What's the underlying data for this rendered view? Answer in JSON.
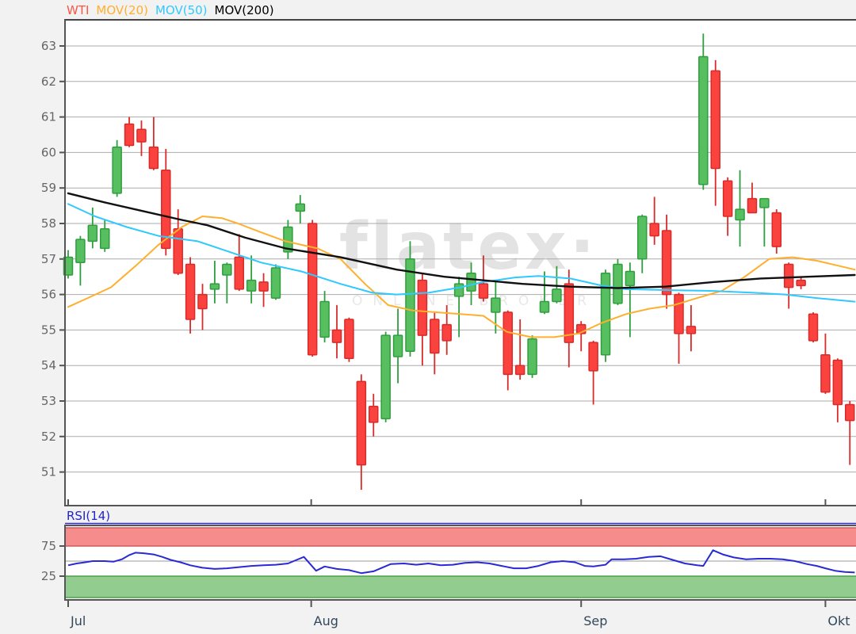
{
  "page": {
    "background": "#f2f2f2"
  },
  "legend": {
    "items": [
      {
        "label": "WTI",
        "color": "#ff5444"
      },
      {
        "label": "MOV(20)",
        "color": "#ffaf2e"
      },
      {
        "label": "MOV(50)",
        "color": "#2fc9ff"
      },
      {
        "label": "MOV(200)",
        "color": "#000000"
      }
    ]
  },
  "watermark": {
    "line1": "flatex·",
    "line2": "ONLINE BROKER",
    "color": "#e3e3e3",
    "color2": "#e8e8e8"
  },
  "rsi_panel": {
    "label": "RSI(14)",
    "label_color": "#2323cf",
    "line_color": "#2a2ad4",
    "upper_band_value": 75,
    "lower_band_value": 25,
    "band_red": "#f68c8c",
    "band_red_edge": "#d05a5a",
    "band_green": "#92cd8f",
    "band_green_edge": "#4ba04b"
  },
  "axes": {
    "y_ticks": [
      63,
      62,
      61,
      60,
      59,
      58,
      57,
      56,
      55,
      54,
      53,
      52,
      51
    ],
    "y_tick_color": "#666666",
    "x_labels": [
      "Jul",
      "Aug",
      "Sep",
      "Okt"
    ],
    "x_label_color": "#33475a",
    "y_range_visible": [
      50.1,
      63.7
    ]
  },
  "chart_data": {
    "type": "candlestick",
    "title": "WTI",
    "subpanel": "RSI(14)",
    "colors": {
      "up": "#57bf5f",
      "up_border": "#2f9e3e",
      "down": "#fa423e",
      "down_border": "#d92b29",
      "ma20": "#ffaf2e",
      "ma50": "#2fc9ff",
      "ma200": "#111111",
      "rsi": "#2a2ad4",
      "grid": "#ababab",
      "border": "#555555"
    },
    "month_ticks": [
      {
        "label": "Jul",
        "i": 0
      },
      {
        "label": "Aug",
        "i": 19.9
      },
      {
        "label": "Sep",
        "i": 42.0
      },
      {
        "label": "Okt",
        "i": 62.0
      }
    ],
    "candles": [
      [
        56.55,
        57.25,
        56.45,
        57.05
      ],
      [
        56.9,
        57.65,
        56.25,
        57.55
      ],
      [
        57.5,
        58.45,
        57.3,
        57.95
      ],
      [
        57.3,
        58.1,
        57.2,
        57.85
      ],
      [
        58.85,
        60.35,
        58.75,
        60.15
      ],
      [
        60.8,
        61.0,
        60.15,
        60.2
      ],
      [
        60.65,
        60.9,
        59.9,
        60.3
      ],
      [
        60.15,
        61.0,
        59.5,
        59.55
      ],
      [
        59.5,
        60.1,
        57.1,
        57.3
      ],
      [
        57.85,
        58.4,
        56.55,
        56.6
      ],
      [
        56.85,
        57.05,
        54.9,
        55.3
      ],
      [
        56.0,
        56.3,
        55.0,
        55.6
      ],
      [
        56.15,
        56.95,
        55.75,
        56.3
      ],
      [
        56.55,
        56.9,
        55.75,
        56.85
      ],
      [
        57.05,
        57.7,
        56.1,
        56.15
      ],
      [
        56.1,
        57.1,
        55.75,
        56.4
      ],
      [
        56.35,
        56.6,
        55.65,
        56.1
      ],
      [
        55.9,
        56.85,
        55.85,
        56.75
      ],
      [
        57.2,
        58.1,
        57.0,
        57.9
      ],
      [
        58.35,
        58.8,
        58.0,
        58.55
      ],
      [
        58.0,
        58.1,
        54.25,
        54.3
      ],
      [
        54.8,
        56.1,
        54.65,
        55.8
      ],
      [
        55.0,
        55.7,
        54.2,
        54.65
      ],
      [
        55.3,
        55.35,
        54.1,
        54.2
      ],
      [
        53.55,
        53.75,
        50.5,
        51.2
      ],
      [
        52.85,
        53.2,
        52.0,
        52.4
      ],
      [
        52.5,
        54.95,
        52.4,
        54.85
      ],
      [
        54.25,
        55.6,
        53.5,
        54.85
      ],
      [
        54.4,
        57.5,
        54.25,
        57.0
      ],
      [
        56.4,
        56.6,
        54.0,
        54.85
      ],
      [
        55.3,
        55.5,
        53.75,
        54.35
      ],
      [
        55.15,
        55.7,
        54.3,
        54.7
      ],
      [
        55.95,
        56.5,
        54.8,
        56.3
      ],
      [
        56.1,
        56.9,
        55.7,
        56.6
      ],
      [
        56.3,
        57.1,
        55.8,
        55.9
      ],
      [
        55.5,
        56.4,
        54.9,
        55.9
      ],
      [
        55.5,
        55.55,
        53.3,
        53.75
      ],
      [
        54.0,
        55.3,
        53.6,
        53.75
      ],
      [
        53.75,
        54.85,
        53.65,
        54.75
      ],
      [
        55.5,
        56.65,
        55.45,
        55.8
      ],
      [
        55.8,
        56.8,
        55.75,
        56.15
      ],
      [
        56.3,
        56.7,
        53.95,
        54.65
      ],
      [
        55.15,
        55.25,
        54.4,
        54.9
      ],
      [
        54.65,
        54.7,
        52.9,
        53.85
      ],
      [
        54.3,
        56.7,
        54.1,
        56.6
      ],
      [
        55.75,
        57.0,
        55.7,
        56.85
      ],
      [
        56.25,
        56.9,
        54.8,
        56.65
      ],
      [
        57.0,
        58.25,
        56.6,
        58.2
      ],
      [
        58.0,
        58.75,
        57.4,
        57.65
      ],
      [
        57.8,
        58.25,
        55.6,
        56.0
      ],
      [
        56.0,
        56.05,
        54.05,
        54.9
      ],
      [
        55.1,
        55.7,
        54.4,
        54.9
      ],
      [
        59.1,
        63.35,
        58.95,
        62.7
      ],
      [
        62.3,
        62.6,
        58.5,
        59.55
      ],
      [
        59.2,
        59.3,
        57.65,
        58.2
      ],
      [
        58.1,
        59.5,
        57.35,
        58.4
      ],
      [
        58.7,
        59.15,
        58.3,
        58.3
      ],
      [
        58.45,
        58.7,
        57.35,
        58.7
      ],
      [
        58.3,
        58.4,
        57.15,
        57.35
      ],
      [
        56.85,
        56.9,
        55.6,
        56.2
      ],
      [
        56.4,
        56.5,
        56.15,
        56.25
      ],
      [
        55.45,
        55.5,
        54.65,
        54.7
      ],
      [
        54.3,
        54.9,
        53.2,
        53.25
      ],
      [
        54.15,
        54.2,
        52.4,
        52.9
      ],
      [
        52.9,
        53.0,
        51.2,
        52.45
      ]
    ],
    "ma20": [
      [
        0,
        55.65
      ],
      [
        1.6,
        55.9
      ],
      [
        3.5,
        56.2
      ],
      [
        5.5,
        56.8
      ],
      [
        7.4,
        57.4
      ],
      [
        9.3,
        57.9
      ],
      [
        11,
        58.2
      ],
      [
        12.6,
        58.15
      ],
      [
        13.9,
        58.0
      ],
      [
        15.8,
        57.75
      ],
      [
        17.8,
        57.5
      ],
      [
        20.4,
        57.3
      ],
      [
        22.3,
        57.0
      ],
      [
        24.3,
        56.3
      ],
      [
        26.2,
        55.7
      ],
      [
        28.2,
        55.55
      ],
      [
        30.1,
        55.5
      ],
      [
        32.1,
        55.45
      ],
      [
        34,
        55.4
      ],
      [
        35.9,
        54.95
      ],
      [
        37.9,
        54.8
      ],
      [
        39.8,
        54.8
      ],
      [
        41.8,
        54.9
      ],
      [
        43.7,
        55.2
      ],
      [
        45.7,
        55.45
      ],
      [
        47.6,
        55.6
      ],
      [
        49.6,
        55.7
      ],
      [
        51.5,
        55.9
      ],
      [
        53.5,
        56.1
      ],
      [
        55.4,
        56.5
      ],
      [
        57.4,
        57.0
      ],
      [
        59.3,
        57.05
      ],
      [
        61.3,
        56.95
      ],
      [
        63.2,
        56.8
      ],
      [
        64.4,
        56.7
      ]
    ],
    "ma50": [
      [
        0,
        58.55
      ],
      [
        2.2,
        58.2
      ],
      [
        4.8,
        57.9
      ],
      [
        7.4,
        57.65
      ],
      [
        10.6,
        57.5
      ],
      [
        13.2,
        57.2
      ],
      [
        15.8,
        56.9
      ],
      [
        19.1,
        56.65
      ],
      [
        22.3,
        56.3
      ],
      [
        24.9,
        56.05
      ],
      [
        26.9,
        56.0
      ],
      [
        29.5,
        56.05
      ],
      [
        32.1,
        56.2
      ],
      [
        34,
        56.35
      ],
      [
        36.6,
        56.48
      ],
      [
        38.5,
        56.52
      ],
      [
        41.1,
        56.45
      ],
      [
        43.7,
        56.25
      ],
      [
        45.7,
        56.15
      ],
      [
        49.6,
        56.12
      ],
      [
        52.8,
        56.1
      ],
      [
        56.1,
        56.05
      ],
      [
        58.7,
        56.0
      ],
      [
        61.3,
        55.9
      ],
      [
        64.4,
        55.8
      ]
    ],
    "ma200": [
      [
        0,
        58.85
      ],
      [
        2.9,
        58.6
      ],
      [
        6.1,
        58.35
      ],
      [
        9.3,
        58.1
      ],
      [
        11.4,
        57.95
      ],
      [
        14.5,
        57.6
      ],
      [
        17.8,
        57.3
      ],
      [
        22.3,
        57.05
      ],
      [
        26.9,
        56.7
      ],
      [
        30.8,
        56.5
      ],
      [
        34,
        56.4
      ],
      [
        37.2,
        56.3
      ],
      [
        41.1,
        56.22
      ],
      [
        45,
        56.18
      ],
      [
        48.9,
        56.22
      ],
      [
        52.8,
        56.35
      ],
      [
        56.7,
        56.45
      ],
      [
        60.6,
        56.5
      ],
      [
        64.4,
        56.55
      ]
    ],
    "rsi": [
      [
        0,
        43
      ],
      [
        0.7,
        46
      ],
      [
        1.4,
        48
      ],
      [
        2,
        50
      ],
      [
        3,
        50
      ],
      [
        3.7,
        49
      ],
      [
        4.4,
        53
      ],
      [
        5,
        60
      ],
      [
        5.5,
        64
      ],
      [
        6.2,
        63
      ],
      [
        7,
        61
      ],
      [
        7.7,
        57
      ],
      [
        8.4,
        52
      ],
      [
        9.2,
        48
      ],
      [
        10,
        43
      ],
      [
        11,
        39
      ],
      [
        12,
        37
      ],
      [
        13,
        38
      ],
      [
        14,
        40
      ],
      [
        15,
        42
      ],
      [
        16,
        43
      ],
      [
        17,
        44
      ],
      [
        18,
        46
      ],
      [
        18.7,
        52
      ],
      [
        19.3,
        57
      ],
      [
        20.3,
        34
      ],
      [
        21,
        41
      ],
      [
        22,
        37
      ],
      [
        23,
        35
      ],
      [
        24,
        30
      ],
      [
        25,
        33
      ],
      [
        26.4,
        45
      ],
      [
        27.5,
        46
      ],
      [
        28.5,
        44
      ],
      [
        29.5,
        46
      ],
      [
        30.5,
        43
      ],
      [
        31.5,
        44
      ],
      [
        32.5,
        47
      ],
      [
        33.5,
        48
      ],
      [
        34.5,
        46
      ],
      [
        35.5,
        42
      ],
      [
        36.5,
        38
      ],
      [
        37.5,
        38
      ],
      [
        38.5,
        42
      ],
      [
        39.5,
        48
      ],
      [
        40.5,
        50
      ],
      [
        41.5,
        48
      ],
      [
        42.3,
        42
      ],
      [
        43,
        41
      ],
      [
        44,
        44
      ],
      [
        44.5,
        53
      ],
      [
        45.5,
        53
      ],
      [
        46.5,
        54
      ],
      [
        47.5,
        57
      ],
      [
        48.5,
        58
      ],
      [
        49.5,
        52
      ],
      [
        50.5,
        46
      ],
      [
        51.5,
        43
      ],
      [
        52,
        42
      ],
      [
        52.8,
        68
      ],
      [
        53.6,
        61
      ],
      [
        54.5,
        56
      ],
      [
        55.5,
        53
      ],
      [
        56.5,
        54
      ],
      [
        57.5,
        54
      ],
      [
        58.5,
        53
      ],
      [
        59.5,
        50
      ],
      [
        60.5,
        45
      ],
      [
        61.3,
        42
      ],
      [
        62,
        38
      ],
      [
        62.8,
        34
      ],
      [
        63.6,
        32
      ],
      [
        64.4,
        31
      ]
    ]
  }
}
